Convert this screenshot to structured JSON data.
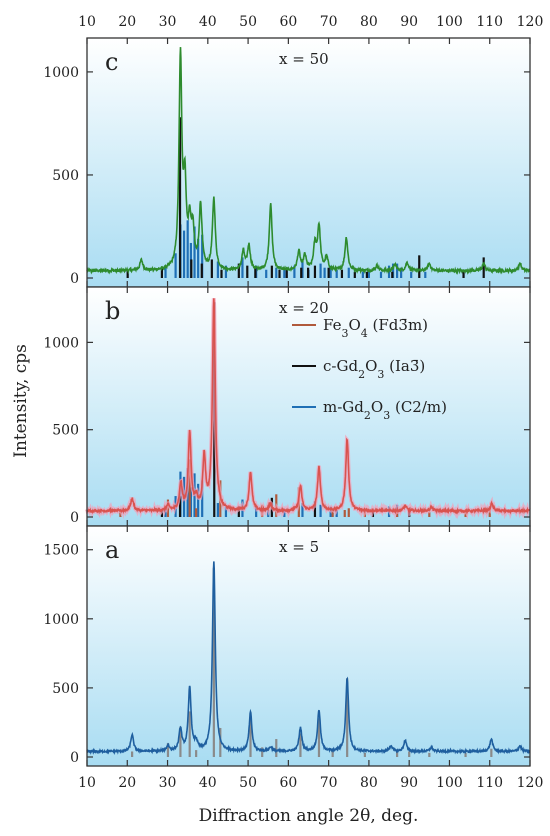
{
  "chart_data": [
    {
      "type": "line",
      "panel": "c",
      "annotation": "x = 50",
      "xlim": [
        10,
        120
      ],
      "ylim": [
        0,
        1150
      ],
      "yticks": [
        0,
        500,
        1000
      ],
      "xticks": [
        10,
        20,
        30,
        40,
        50,
        60,
        70,
        80,
        90,
        100,
        110,
        120
      ],
      "xtick_labels_position": "top",
      "series": [
        {
          "color": "#2e8b2e",
          "baseline": 35,
          "peaks": [
            [
              23.5,
              50
            ],
            [
              33.2,
              1020
            ],
            [
              34.3,
              380
            ],
            [
              35.5,
              200
            ],
            [
              36.3,
              170
            ],
            [
              38.2,
              310
            ],
            [
              41.5,
              345
            ],
            [
              48.8,
              90
            ],
            [
              50.2,
              120
            ],
            [
              55.6,
              320
            ],
            [
              62.6,
              90
            ],
            [
              64.1,
              70
            ],
            [
              66.6,
              120
            ],
            [
              67.6,
              210
            ],
            [
              69.5,
              60
            ],
            [
              74.4,
              160
            ],
            [
              82,
              25
            ],
            [
              86.5,
              30
            ],
            [
              89.5,
              40
            ],
            [
              95,
              35
            ],
            [
              108.5,
              35
            ],
            [
              117.5,
              35
            ]
          ]
        }
      ],
      "reference_lines": [
        {
          "color": "#1f6fb5",
          "positions": [
            29.5,
            32,
            33.2,
            34.1,
            35,
            35.8,
            36.7,
            37.6,
            38.6,
            42.5,
            44.5,
            48.6,
            52,
            54.5,
            57,
            59,
            61.5,
            63.5,
            65,
            68,
            69,
            70.5,
            72,
            75,
            78.5,
            80,
            83,
            85,
            86,
            87,
            88,
            90.5,
            94
          ],
          "heights": [
            50,
            120,
            260,
            230,
            280,
            170,
            250,
            190,
            210,
            80,
            60,
            100,
            60,
            40,
            50,
            40,
            60,
            80,
            40,
            70,
            50,
            60,
            40,
            50,
            30,
            30,
            30,
            60,
            70,
            70,
            50,
            30,
            30
          ]
        },
        {
          "color": "#111111",
          "positions": [
            20.1,
            28.6,
            33.1,
            35.9,
            38.5,
            41.0,
            43.4,
            47.7,
            49.8,
            51.8,
            55.9,
            57.8,
            59.6,
            63.2,
            64.9,
            66.6,
            70.0,
            73.3,
            76.5,
            79.5,
            85.8,
            92.5,
            103.5,
            108.5
          ],
          "heights": [
            40,
            50,
            780,
            90,
            70,
            90,
            40,
            70,
            60,
            50,
            60,
            40,
            40,
            50,
            50,
            60,
            50,
            40,
            30,
            30,
            30,
            110,
            40,
            100
          ]
        }
      ]
    },
    {
      "type": "line",
      "panel": "b",
      "annotation": "x = 20",
      "xlim": [
        10,
        120
      ],
      "ylim": [
        0,
        1300
      ],
      "yticks": [
        0,
        500,
        1000
      ],
      "legend": {
        "position": "top-right",
        "entries": [
          {
            "label_main": "Fe",
            "label_sub": "3",
            "label_main2": "O",
            "label_sub2": "4",
            "label_tail": " (Fd3̄m)",
            "color": "#b05a3c"
          },
          {
            "label_main": "c-Gd",
            "label_sub": "2",
            "label_main2": "O",
            "label_sub2": "3",
            "label_tail": " (Ia3̄)",
            "color": "#111111"
          },
          {
            "label_main": "m-Gd",
            "label_sub": "2",
            "label_main2": "O",
            "label_sub2": "3",
            "label_tail": " (C2/m)",
            "color": "#1f6fb5"
          }
        ]
      },
      "series": [
        {
          "color": "#d9534f",
          "baseline": 35,
          "peaks": [
            [
              21.2,
              70
            ],
            [
              30.1,
              30
            ],
            [
              33.3,
              150
            ],
            [
              35.5,
              440
            ],
            [
              37.1,
              60
            ],
            [
              39.1,
              300
            ],
            [
              41.5,
              1210
            ],
            [
              50.6,
              220
            ],
            [
              55.5,
              40
            ],
            [
              63.0,
              140
            ],
            [
              67.6,
              250
            ],
            [
              74.6,
              410
            ],
            [
              89.0,
              30
            ],
            [
              95.5,
              20
            ],
            [
              110.5,
              40
            ]
          ]
        }
      ],
      "reference_lines": [
        {
          "color": "#1f6fb5",
          "positions": [
            29.5,
            32,
            33.2,
            34.1,
            35,
            35.8,
            36.7,
            37.6,
            38.6,
            42.5,
            44.5,
            48.6,
            52,
            55,
            59,
            63.5,
            68,
            70.5,
            72,
            85,
            87
          ],
          "heights": [
            50,
            120,
            260,
            230,
            280,
            170,
            250,
            190,
            210,
            80,
            60,
            100,
            60,
            40,
            40,
            80,
            70,
            60,
            40,
            60,
            70
          ]
        },
        {
          "color": "#b05a3c",
          "positions": [
            18.3,
            30.1,
            35.5,
            37.1,
            43.1,
            53.5,
            57.0,
            62.6,
            71.0,
            74.0,
            75.0,
            79.0,
            87.0,
            90.0,
            95.0,
            104.0,
            110.0
          ],
          "heights": [
            40,
            100,
            330,
            50,
            210,
            70,
            130,
            170,
            40,
            40,
            50,
            30,
            40,
            40,
            30,
            30,
            60
          ]
        },
        {
          "color": "#111111",
          "positions": [
            28.6,
            33.1,
            41.6,
            47.7,
            55.9,
            66.6,
            81.0,
            90.0
          ],
          "heights": [
            40,
            120,
            1230,
            60,
            110,
            90,
            30,
            40
          ]
        }
      ]
    },
    {
      "type": "line",
      "panel": "a",
      "annotation": "x = 5",
      "xlim": [
        10,
        120
      ],
      "ylim": [
        0,
        1650
      ],
      "yticks": [
        0,
        500,
        1000,
        1500
      ],
      "xticks": [
        10,
        20,
        30,
        40,
        50,
        60,
        70,
        80,
        90,
        100,
        110,
        120
      ],
      "xlabel": "Diffraction angle 2θ, deg.",
      "ylabel": "Intensity, cps",
      "series": [
        {
          "color": "#1f5f9f",
          "baseline": 40,
          "peaks": [
            [
              21.2,
              120
            ],
            [
              30.1,
              40
            ],
            [
              33.2,
              160
            ],
            [
              35.5,
              460
            ],
            [
              37.1,
              60
            ],
            [
              41.5,
              1370
            ],
            [
              50.6,
              280
            ],
            [
              55.6,
              30
            ],
            [
              63.0,
              170
            ],
            [
              67.6,
              300
            ],
            [
              74.6,
              530
            ],
            [
              85.5,
              40
            ],
            [
              89.0,
              80
            ],
            [
              95.5,
              30
            ],
            [
              110.4,
              90
            ],
            [
              117.5,
              40
            ]
          ]
        }
      ],
      "reference_lines": [
        {
          "color": "#8a8a8a",
          "positions": [
            21.2,
            30.1,
            33.2,
            35.5,
            37.1,
            41.5,
            43.1,
            50.6,
            53.5,
            57.0,
            63.0,
            67.6,
            71.0,
            74.6,
            79.0,
            87.0,
            90.0,
            95.0,
            104.0,
            110.4
          ],
          "heights": [
            40,
            100,
            220,
            330,
            50,
            1370,
            210,
            270,
            70,
            130,
            170,
            280,
            40,
            570,
            30,
            40,
            40,
            30,
            30,
            60
          ]
        }
      ]
    }
  ]
}
